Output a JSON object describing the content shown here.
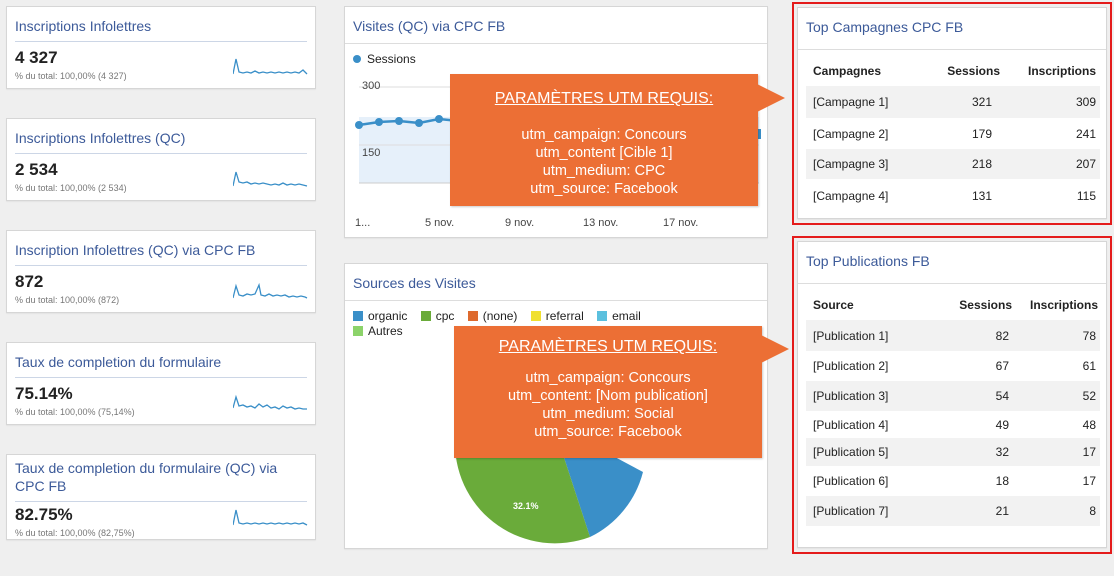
{
  "metrics": [
    {
      "title": "Inscriptions Infolettres",
      "value": "4 327",
      "sub": "% du total: 100,00% (4 327)"
    },
    {
      "title": "Inscriptions Infolettres (QC)",
      "value": "2 534",
      "sub": "% du total: 100,00% (2 534)"
    },
    {
      "title": "Inscription Infolettres (QC) via CPC FB",
      "value": "872",
      "sub": "% du total: 100,00% (872)"
    },
    {
      "title": "Taux de completion du formulaire",
      "value": "75.14%",
      "sub": "% du total: 100,00% (75,14%)"
    },
    {
      "title": "Taux de completion du formulaire (QC) via CPC FB",
      "value": "82.75%",
      "sub": "% du total: 100,00% (82,75%)"
    }
  ],
  "visits_chart": {
    "title": "Visites (QC) via CPC FB",
    "legend": "Sessions",
    "y_ticks": [
      "300",
      "150"
    ],
    "x_ticks": [
      "1...",
      "5 nov.",
      "9 nov.",
      "13 nov.",
      "17 nov."
    ]
  },
  "sources_chart": {
    "title": "Sources des Visites",
    "legend": [
      {
        "label": "organic",
        "color": "#3a8fc8"
      },
      {
        "label": "cpc",
        "color": "#6aab3a"
      },
      {
        "label": "(none)",
        "color": "#de6a2e"
      },
      {
        "label": "referral",
        "color": "#f0e030"
      },
      {
        "label": "email",
        "color": "#5bc0de"
      },
      {
        "label": "Autres",
        "color": "#8cd36a"
      }
    ],
    "pie_label": "32.1%"
  },
  "callout1": {
    "heading": "PARAMÈTRES UTM REQUIS:",
    "lines": [
      "utm_campaign: Concours",
      "utm_content [Cible 1]",
      "utm_medium: CPC",
      "utm_source: Facebook"
    ]
  },
  "callout2": {
    "heading": "PARAMÈTRES UTM REQUIS:",
    "lines": [
      "utm_campaign: Concours",
      "utm_content: [Nom publication]",
      "utm_medium: Social",
      "utm_source: Facebook"
    ]
  },
  "campaigns": {
    "title": "Top Campagnes CPC FB",
    "headers": [
      "Campagnes",
      "Sessions",
      "Inscriptions"
    ],
    "rows": [
      [
        "[Campagne 1]",
        "321",
        "309"
      ],
      [
        "[Campagne 2]",
        "179",
        "241"
      ],
      [
        "[Campagne 3]",
        "218",
        "207"
      ],
      [
        "[Campagne 4]",
        "131",
        "115"
      ]
    ]
  },
  "publications": {
    "title": "Top Publications FB",
    "headers": [
      "Source",
      "Sessions",
      "Inscriptions"
    ],
    "rows": [
      [
        "[Publication 1]",
        "82",
        "78"
      ],
      [
        "[Publication 2]",
        "67",
        "61"
      ],
      [
        "[Publication 3]",
        "54",
        "52"
      ],
      [
        "[Publication 4]",
        "49",
        "48"
      ],
      [
        "[Publication 5]",
        "32",
        "17"
      ],
      [
        "[Publication 6]",
        "18",
        "17"
      ],
      [
        "[Publication 7]",
        "21",
        "8"
      ]
    ]
  },
  "colors": {
    "accent": "#3c5a99",
    "callout": "#ec6f35",
    "highlight": "#e41b1b",
    "line": "#3a8fc8"
  }
}
